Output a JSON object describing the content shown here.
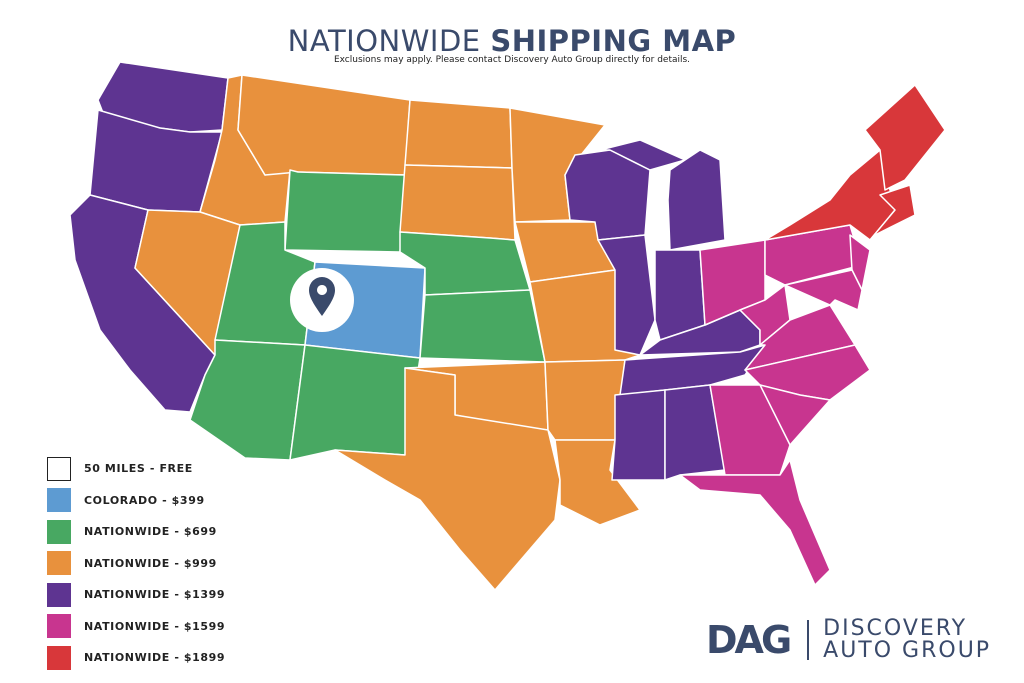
{
  "header": {
    "title_light": "NATIONWIDE",
    "title_bold": "SHIPPING MAP",
    "subtitle": "Exclusions may apply. Please contact Discovery Auto Group directly for details."
  },
  "colors": {
    "free": "#ffffff",
    "colorado": "#5d9bd2",
    "n699": "#48a862",
    "n999": "#e8913d",
    "n1399": "#5e3491",
    "n1599": "#c8358f",
    "n1899": "#d8373a",
    "marker": "#3a4a6b"
  },
  "legend": [
    {
      "label": "50 MILES - FREE",
      "color": "#ffffff"
    },
    {
      "label": "COLORADO - $399",
      "color": "#5d9bd2"
    },
    {
      "label": "NATIONWIDE - $699",
      "color": "#48a862"
    },
    {
      "label": "NATIONWIDE - $999",
      "color": "#e8913d"
    },
    {
      "label": "NATIONWIDE - $1399",
      "color": "#5e3491"
    },
    {
      "label": "NATIONWIDE - $1599",
      "color": "#c8358f"
    },
    {
      "label": "NATIONWIDE - $1899",
      "color": "#d8373a"
    }
  ],
  "map": {
    "marker_icon": "location-pin-icon",
    "marker_state": "Colorado"
  },
  "logo": {
    "mark": "DAG",
    "line1": "DISCOVERY",
    "line2": "AUTO GROUP"
  }
}
